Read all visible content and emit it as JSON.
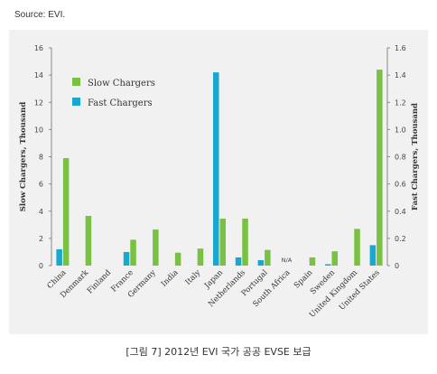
{
  "source": "Source: EVI.",
  "caption": "[그림 7] 2012년 EVI 국가 공공 EVSE 보급",
  "colors": {
    "slow": "#7ac143",
    "fast": "#18a8cf",
    "panel": "#f1f1f1",
    "axis": "#888888"
  },
  "chart_data": {
    "type": "bar",
    "categories": [
      "China",
      "Denmark",
      "Finland",
      "France",
      "Germany",
      "India",
      "Italy",
      "Japan",
      "Netherlands",
      "Portugal",
      "South Africa",
      "Spain",
      "Sweden",
      "United Kingdom",
      "United States"
    ],
    "series": [
      {
        "name": "Slow Chargers",
        "axis": "left",
        "color": "#7ac143",
        "values": [
          7.9,
          3.65,
          0,
          1.9,
          2.65,
          0.95,
          1.25,
          3.45,
          3.45,
          1.15,
          null,
          0.6,
          1.05,
          2.7,
          14.4
        ]
      },
      {
        "name": "Fast Chargers",
        "axis": "right",
        "color": "#18a8cf",
        "values": [
          0.12,
          0,
          0,
          0.1,
          0,
          0,
          0,
          1.42,
          0.06,
          0.04,
          null,
          0,
          0.01,
          0,
          0.15
        ]
      }
    ],
    "annotations": [
      {
        "category": "South Africa",
        "text": "N/A"
      }
    ],
    "ylabel": "Slow Chargers, Thousand",
    "y2label": "Fast Chargers, Thousand",
    "ylim": [
      0,
      16
    ],
    "y2lim": [
      0,
      1.6
    ],
    "yticks": [
      "0",
      "2",
      "4",
      "6",
      "8",
      "10",
      "12",
      "14",
      "16"
    ],
    "y2ticks": [
      "0",
      "0.2",
      "0.4",
      "0.6",
      "0.8",
      "1.0",
      "1.2",
      "1.4",
      "1.6"
    ],
    "legend": [
      "Slow Chargers",
      "Fast Chargers"
    ],
    "legend_position": "top-left",
    "grid": false
  }
}
